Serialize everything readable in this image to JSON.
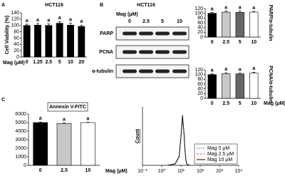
{
  "chart_data": [
    {
      "type": "bar",
      "panel": "A",
      "title": "HCT116",
      "ylabel": "Cell Viability (%)",
      "xlabel": "Mag (μM)",
      "categories": [
        "0",
        "1.25",
        "2.5",
        "5",
        "10",
        "20"
      ],
      "values": [
        100,
        101,
        100,
        107,
        101,
        97
      ],
      "errors": [
        4,
        5,
        5,
        5,
        6,
        4
      ],
      "colors": [
        "#000000",
        "#000000",
        "#000000",
        "#000000",
        "#000000",
        "#000000"
      ],
      "annotations": [
        "a",
        "a",
        "a",
        "a",
        "a",
        "a"
      ],
      "ylim": [
        0,
        140
      ],
      "yticks": [
        0,
        20,
        40,
        60,
        80,
        100,
        120,
        140
      ]
    },
    {
      "type": "blot",
      "panel": "B",
      "title": "HCT116",
      "xlabel": "Mag (μM)",
      "categories": [
        "0",
        "2.5",
        "5",
        "10"
      ],
      "rows": [
        "PARP",
        "PCNA",
        "α-tubulin"
      ]
    },
    {
      "type": "bar",
      "ylabel": "PARP/α-tubulin",
      "categories": [
        "0",
        "2.5",
        "5",
        "10"
      ],
      "values": [
        100,
        105,
        104,
        105
      ],
      "errors": [
        3,
        4,
        5,
        3
      ],
      "colors": [
        "#000000",
        "#c8c8c8",
        "#666666",
        "#ffffff"
      ],
      "annotations": [
        "a",
        "a",
        "a",
        "a"
      ],
      "ylim": [
        0,
        120
      ],
      "yticks": [
        0,
        20,
        40,
        60,
        80,
        100,
        120
      ]
    },
    {
      "type": "bar",
      "ylabel": "PCNA/α-tubulin",
      "xlabel": "Mag (μM)",
      "categories": [
        "0",
        "2.5",
        "5",
        "10"
      ],
      "values": [
        100,
        104,
        103,
        106
      ],
      "errors": [
        3,
        4,
        3,
        4
      ],
      "colors": [
        "#000000",
        "#c8c8c8",
        "#666666",
        "#ffffff"
      ],
      "annotations": [
        "a",
        "a",
        "a",
        "a"
      ],
      "ylim": [
        0,
        120
      ],
      "yticks": [
        0,
        20,
        40,
        60,
        80,
        100,
        120
      ]
    },
    {
      "type": "bar",
      "panel": "C",
      "title": "Annexin V-FITC",
      "xlabel": "Mag (μM)",
      "categories": [
        "0",
        "2.5",
        "10"
      ],
      "values": [
        5000,
        4900,
        5000
      ],
      "errors": [
        60,
        60,
        40
      ],
      "colors": [
        "#000000",
        "#c8c8c8",
        "#ffffff"
      ],
      "annotations": [
        "a",
        "a",
        "a"
      ],
      "ylim": [
        0,
        6000
      ],
      "yticks": [
        0,
        1000,
        2000,
        3000,
        4000,
        5000,
        6000
      ]
    },
    {
      "type": "line",
      "ylabel": "Count",
      "xscale": "log",
      "xlim": [
        0.1,
        10000
      ],
      "xticks": [
        {
          "value": 0.1,
          "label": "10⁻¹"
        },
        {
          "value": 1,
          "label": "10⁰"
        },
        {
          "value": 10,
          "label": "10¹"
        },
        {
          "value": 100,
          "label": "10²"
        },
        {
          "value": 1000,
          "label": "10³"
        },
        {
          "value": 10000,
          "label": "10⁴"
        }
      ],
      "ylim": [
        0,
        200
      ],
      "x": [
        2,
        5,
        8,
        10,
        12,
        14,
        16,
        18,
        20,
        25,
        30
      ],
      "series": [
        {
          "name": "Mag 0 μM",
          "color": "#3355cc",
          "dash": "1.5,1.5",
          "values": [
            0,
            4,
            28,
            95,
            165,
            120,
            58,
            18,
            5,
            1,
            0
          ]
        },
        {
          "name": "Mag 2.5 μM",
          "color": "#e0501e",
          "dash": "3,2",
          "values": [
            0,
            5,
            32,
            100,
            150,
            125,
            62,
            20,
            6,
            1,
            0
          ]
        },
        {
          "name": "Mag 10 μM",
          "color": "#000000",
          "dash": "",
          "values": [
            0,
            5,
            30,
            98,
            172,
            118,
            55,
            17,
            4,
            1,
            0
          ]
        }
      ]
    }
  ]
}
